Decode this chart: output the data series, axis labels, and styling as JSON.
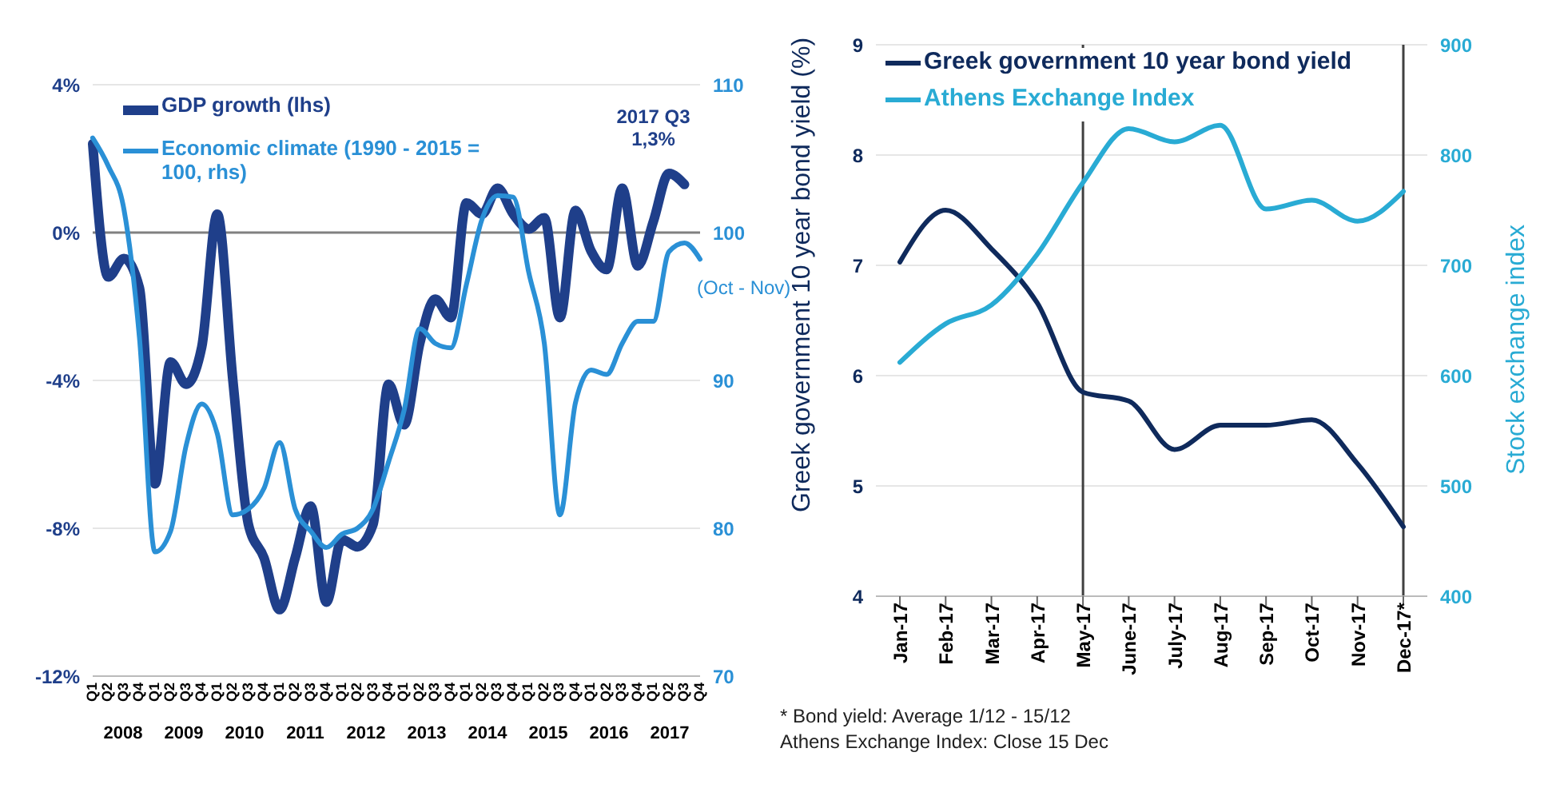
{
  "chart_data": [
    {
      "type": "line",
      "categories": [
        "Q1",
        "Q2",
        "Q3",
        "Q4",
        "Q1",
        "Q2",
        "Q3",
        "Q4",
        "Q1",
        "Q2",
        "Q3",
        "Q4",
        "Q1",
        "Q2",
        "Q3",
        "Q4",
        "Q1",
        "Q2",
        "Q3",
        "Q4",
        "Q1",
        "Q2",
        "Q3",
        "Q4",
        "Q1",
        "Q2",
        "Q3",
        "Q4",
        "Q1",
        "Q2",
        "Q3",
        "Q4",
        "Q1",
        "Q2",
        "Q3",
        "Q4",
        "Q1",
        "Q2",
        "Q3",
        "Q4"
      ],
      "series": [
        {
          "name": "GDP growth (lhs)",
          "color": "#1f3f8a",
          "values": [
            2.4,
            -1.2,
            -0.7,
            -1.5,
            -6.8,
            -3.5,
            -4.1,
            -3.1,
            0.5,
            -4.0,
            -7.9,
            -8.8,
            -10.2,
            -8.8,
            -7.4,
            -10.0,
            -8.3,
            -8.5,
            -7.9,
            -4.1,
            -5.2,
            -3.0,
            -1.8,
            -2.3,
            0.8,
            0.5,
            1.2,
            0.5,
            0.1,
            0.4,
            -2.3,
            0.6,
            -0.5,
            -1.0,
            1.2,
            -0.9,
            0.3,
            1.6,
            1.3,
            null
          ]
        },
        {
          "name": "Economic climate (1990 - 2015 = 100, rhs)",
          "color": "#2a90d6",
          "axis": "y2",
          "values": [
            106.4,
            104.5,
            101.6,
            92.9,
            78.4,
            79.8,
            85.6,
            88.4,
            86.4,
            80.9,
            81.3,
            82.7,
            85.8,
            81.3,
            79.8,
            78.7,
            79.6,
            80,
            81.3,
            84.5,
            88,
            93.5,
            92.5,
            92.2,
            96.5,
            100.9,
            102.5,
            102.4,
            97.3,
            92.5,
            80.9,
            88.5,
            90.7,
            90.4,
            92.5,
            94,
            94,
            98.7,
            99.3,
            98.2
          ]
        }
      ],
      "ylim": [
        -12,
        4
      ],
      "yticks": [
        {
          "value": -12,
          "label": "-12%"
        },
        {
          "value": -8,
          "label": "-8%"
        },
        {
          "value": -4,
          "label": "-4%"
        },
        {
          "value": 0,
          "label": "0%"
        },
        {
          "value": 4,
          "label": "4%"
        }
      ],
      "y2lim": [
        70,
        110
      ],
      "y2ticks": [
        70,
        80,
        90,
        100,
        110
      ],
      "ref_lines": [
        {
          "axis": "y",
          "value": 0,
          "color": "#808080"
        }
      ],
      "grid": "y",
      "legend": "top left",
      "annotations": [
        "2008",
        "2009",
        "2010",
        "2011",
        "2012",
        "2013",
        "2014",
        "2015",
        "2016",
        "2017",
        "2017 Q3\n1,3%",
        "(Oct - Nov)"
      ]
    },
    {
      "type": "line",
      "categories": [
        "Jan-17",
        "Feb-17",
        "Mar-17",
        "Apr-17",
        "May-17",
        "June-17",
        "July-17",
        "Aug-17",
        "Sep-17",
        "Oct-17",
        "Nov-17",
        "Dec-17*"
      ],
      "series": [
        {
          "name": "Greek government 10 year bond yield",
          "color": "#0f2a5c",
          "values": [
            7.03,
            7.5,
            7.15,
            6.66,
            5.85,
            5.77,
            5.33,
            5.55,
            5.55,
            5.6,
            5.2,
            4.63
          ]
        },
        {
          "name": "Athens Exchange Index",
          "color": "#29abd4",
          "axis": "y2",
          "values": [
            612,
            647,
            664,
            710,
            775,
            824,
            812,
            827,
            751,
            759,
            740,
            767
          ]
        }
      ],
      "ylabel": "Greek government 10 year bond yield (%)",
      "y2label": "Stock exchange index",
      "ylim": [
        4,
        9
      ],
      "yticks": [
        4,
        5,
        6,
        7,
        8,
        9
      ],
      "y2lim": [
        400,
        900
      ],
      "y2ticks": [
        400,
        500,
        600,
        700,
        800,
        900
      ],
      "ref_lines": [
        {
          "axis": "x",
          "value": "May-17",
          "color": "#404040"
        },
        {
          "axis": "x",
          "value": "Dec-17*",
          "color": "#404040"
        }
      ],
      "grid": "y",
      "legend": "top left",
      "annotations": [
        "* Bond yield: Average 1/12 - 15/12\nAthens Exchange Index: Close 15 Dec"
      ]
    }
  ]
}
